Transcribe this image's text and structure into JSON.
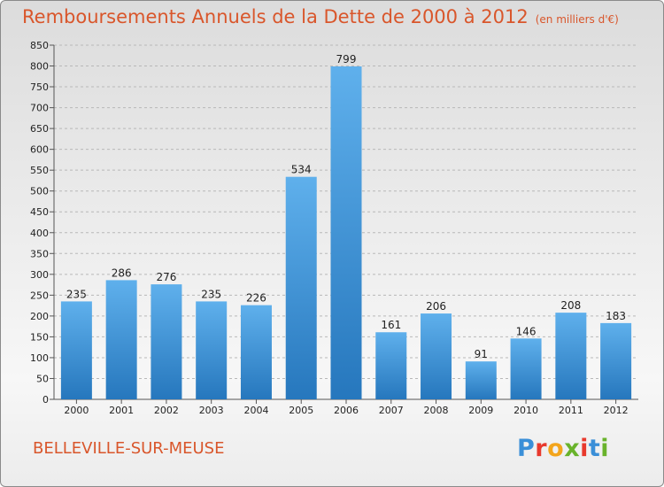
{
  "header": {
    "title": "Remboursements Annuels de la Dette de 2000 à 2012",
    "unit": "(en milliers d'€)"
  },
  "footer": {
    "commune": "BELLEVILLE-SUR-MEUSE",
    "brand": "Proxiti",
    "brand_colors": [
      "#3a8fd8",
      "#e8392d",
      "#f3a51c",
      "#69b32b",
      "#e8392d",
      "#3a8fd8",
      "#69b32b"
    ]
  },
  "chart_data": {
    "type": "bar",
    "title": "Remboursements Annuels de la Dette de 2000 à 2012",
    "subtitle": "(en milliers d'€)",
    "categories": [
      "2000",
      "2001",
      "2002",
      "2003",
      "2004",
      "2005",
      "2006",
      "2007",
      "2008",
      "2009",
      "2010",
      "2011",
      "2012"
    ],
    "values": [
      235,
      286,
      276,
      235,
      226,
      534,
      799,
      161,
      206,
      91,
      146,
      208,
      183
    ],
    "ylim": [
      0,
      850
    ],
    "yticks": [
      0,
      50,
      100,
      150,
      200,
      250,
      300,
      350,
      400,
      450,
      500,
      550,
      600,
      650,
      700,
      750,
      800,
      850
    ],
    "grid": true,
    "bar_color": "#3d93d6"
  }
}
